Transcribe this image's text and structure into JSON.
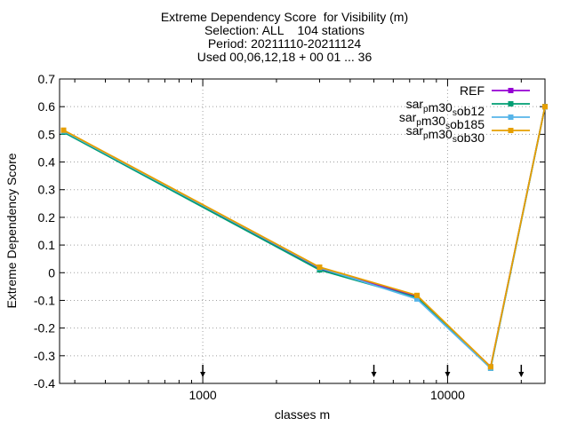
{
  "chart_data": {
    "type": "line",
    "title": "Extreme Dependency Score  for Visibility (m)",
    "subtitles": [
      "Selection: ALL    104 stations",
      "Period: 20211110-20211124",
      "Used 00,06,12,18 + 00 01 ... 36"
    ],
    "xlabel": "classes m",
    "ylabel": "Extreme Dependency Score",
    "x_scale": "log",
    "xlim": [
      260,
      25000
    ],
    "ylim": [
      -0.4,
      0.7
    ],
    "x_ticks": [
      1000,
      10000
    ],
    "x_tick_labels": [
      "1000",
      "10000"
    ],
    "y_ticks": [
      -0.4,
      -0.3,
      -0.2,
      -0.1,
      0,
      0.1,
      0.2,
      0.3,
      0.4,
      0.5,
      0.6,
      0.7
    ],
    "y_tick_labels": [
      "-0.4",
      "-0.3",
      "-0.2",
      "-0.1",
      "0",
      "0.1",
      "0.2",
      "0.3",
      "0.4",
      "0.5",
      "0.6",
      "0.7"
    ],
    "grid": true,
    "legend_position": "top-right",
    "marker_arrows_x": [
      1000,
      5000,
      10000,
      20000
    ],
    "x": [
      270,
      3000,
      7500,
      15000,
      25000
    ],
    "series": [
      {
        "name": "REF",
        "color": "#9400d3",
        "values": [
          0.51,
          0.015,
          -0.085,
          -0.34,
          0.6
        ]
      },
      {
        "name": "sar_pm30_sob12",
        "legend_base": "sar",
        "legend_sub1": "p",
        "legend_mid": "m30",
        "legend_sub2": "s",
        "legend_tail": "ob12",
        "color": "#009e73",
        "values": [
          0.508,
          0.01,
          -0.09,
          -0.345,
          0.6
        ]
      },
      {
        "name": "sar_pm30_sob185",
        "legend_base": "sar",
        "legend_sub1": "p",
        "legend_mid": "m30",
        "legend_sub2": "s",
        "legend_tail": "ob185",
        "color": "#56b4e9",
        "values": [
          0.512,
          0.018,
          -0.095,
          -0.345,
          0.6
        ]
      },
      {
        "name": "sar_pm30_sob30",
        "legend_base": "sar",
        "legend_sub1": "p",
        "legend_mid": "m30",
        "legend_sub2": "s",
        "legend_tail": "ob30",
        "color": "#e69f00",
        "values": [
          0.515,
          0.02,
          -0.082,
          -0.34,
          0.6
        ]
      }
    ]
  }
}
